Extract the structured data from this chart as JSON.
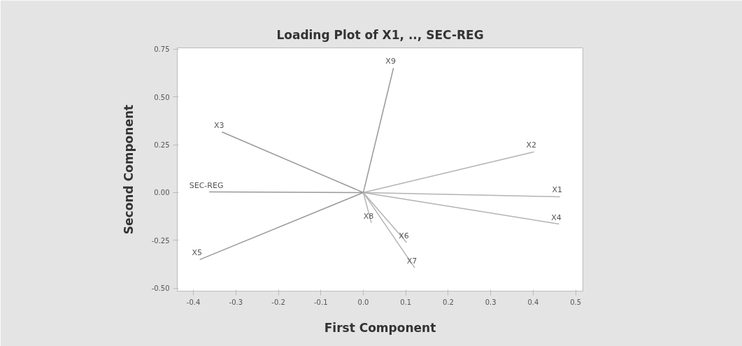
{
  "chart_data": {
    "type": "line",
    "title": "Loading Plot of X1, .., SEC-REG",
    "xlabel": "First Component",
    "ylabel": "Second Component",
    "xlim": [
      -0.438,
      0.517
    ],
    "ylim": [
      -0.516,
      0.757
    ],
    "xticks": [
      -0.4,
      -0.3,
      -0.2,
      -0.1,
      {
        "value": 0,
        "label": "0.0"
      },
      0.1,
      0.2,
      0.3,
      0.4,
      0.5
    ],
    "yticks": [
      {
        "value": -0.5,
        "label": "-0.50"
      },
      -0.25,
      {
        "value": 0,
        "label": "0.00"
      },
      0.25,
      {
        "value": 0.5,
        "label": "0.50"
      },
      0.75
    ],
    "grid": false,
    "legend": false,
    "marker": "none",
    "line_style": "solid",
    "series": [
      {
        "name": "X1",
        "color": "#b3b3b3",
        "x": [
          0,
          0.463
        ],
        "values": [
          0,
          -0.022
        ]
      },
      {
        "name": "X2",
        "color": "#b3b3b3",
        "x": [
          0,
          0.402
        ],
        "values": [
          0,
          0.213
        ]
      },
      {
        "name": "X3",
        "color": "#999999",
        "x": [
          0,
          -0.333
        ],
        "values": [
          0,
          0.317
        ]
      },
      {
        "name": "X4",
        "color": "#b3b3b3",
        "x": [
          0,
          0.461
        ],
        "values": [
          0,
          -0.165
        ]
      },
      {
        "name": "X5",
        "color": "#999999",
        "x": [
          0,
          -0.385
        ],
        "values": [
          0,
          -0.351
        ]
      },
      {
        "name": "X6",
        "color": "#b3b3b3",
        "x": [
          0,
          0.102
        ],
        "values": [
          0,
          -0.262
        ]
      },
      {
        "name": "X7",
        "color": "#b3b3b3",
        "x": [
          0,
          0.121
        ],
        "values": [
          0,
          -0.394
        ]
      },
      {
        "name": "X8",
        "color": "#b3b3b3",
        "x": [
          0,
          0.019
        ],
        "values": [
          0,
          -0.159
        ]
      },
      {
        "name": "X9",
        "color": "#999999",
        "x": [
          0,
          0.071
        ],
        "values": [
          0,
          0.652
        ]
      },
      {
        "name": "SEC-REG",
        "color": "#999999",
        "x": [
          0,
          -0.363
        ],
        "values": [
          0,
          0.003
        ]
      }
    ]
  }
}
